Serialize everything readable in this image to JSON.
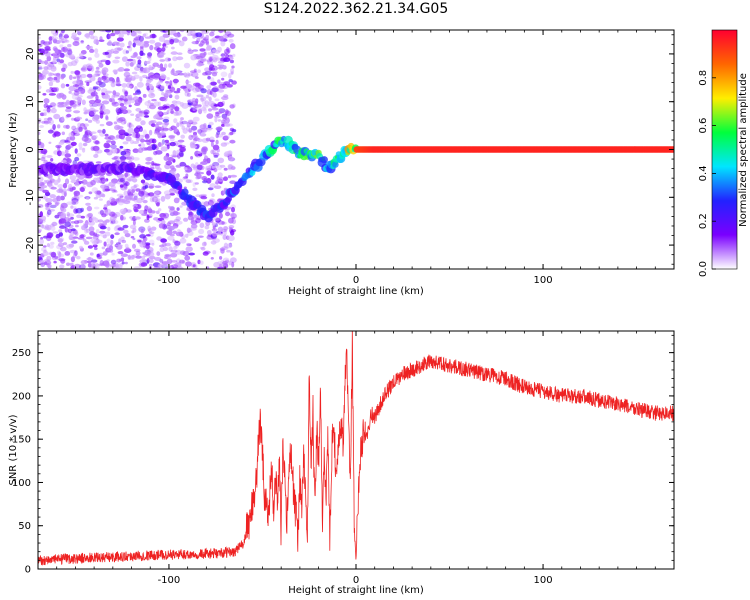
{
  "title": "S124.2022.362.21.34.G05",
  "chart_data": [
    {
      "type": "heatmap",
      "xlabel": "Height of straight line (km)",
      "ylabel": "Frequency (Hz)",
      "xlim": [
        -170,
        170
      ],
      "ylim": [
        -25,
        25
      ],
      "xticks": [
        -100,
        0,
        100
      ],
      "yticks": [
        -20,
        -10,
        0,
        10,
        20
      ],
      "colorbar": {
        "label": "Normalized spectral amplitude",
        "range": [
          0,
          1
        ],
        "ticks": [
          "0.0",
          "0.2",
          "0.4",
          "0.6",
          "0.8"
        ],
        "colors": [
          "#ffffff",
          "#7a00ff",
          "#2222ff",
          "#00e6ff",
          "#00ff3c",
          "#ffee00",
          "#ff6600",
          "#ff0030"
        ]
      },
      "ridge": {
        "x": [
          -170,
          -120,
          -100,
          -80,
          -70,
          -60,
          -50,
          -40,
          -35,
          -30,
          -25,
          -20,
          -15,
          -10,
          -5,
          0,
          10,
          50,
          100,
          170
        ],
        "freq": [
          -4,
          -4,
          -6,
          -14,
          -11,
          -6,
          -2,
          2,
          1,
          -1,
          -1,
          -1,
          -4,
          -2,
          0,
          0,
          0,
          0,
          0,
          0
        ],
        "amplitude": [
          0.15,
          0.2,
          0.25,
          0.3,
          0.3,
          0.35,
          0.45,
          0.55,
          0.55,
          0.6,
          0.6,
          0.65,
          0.4,
          0.6,
          0.7,
          0.9,
          0.95,
          0.95,
          0.95,
          0.95
        ]
      }
    },
    {
      "type": "line",
      "xlabel": "Height of straight line (km)",
      "ylabel": "SNR (10 * v/v)",
      "xlim": [
        -170,
        170
      ],
      "ylim": [
        0,
        275
      ],
      "xticks": [
        -100,
        0,
        100
      ],
      "yticks": [
        0,
        50,
        100,
        150,
        200,
        250
      ],
      "color": "#ee2222",
      "series": [
        {
          "x": [
            -170,
            -150,
            -130,
            -110,
            -90,
            -75,
            -65,
            -60,
            -57,
            -55,
            -53,
            -52,
            -51,
            -49,
            -47,
            -45,
            -44,
            -43,
            -42,
            -41,
            -40,
            -39,
            -38,
            -37,
            -35,
            -33,
            -31,
            -30,
            -29,
            -28,
            -27,
            -26,
            -25,
            -24,
            -23,
            -22,
            -21,
            -20,
            -19,
            -18,
            -17,
            -16,
            -15,
            -14,
            -13,
            -12,
            -11,
            -10,
            -9,
            -8,
            -7,
            -6,
            -5,
            -4,
            -3,
            -2,
            -1,
            0,
            2,
            4,
            6,
            8,
            10,
            15,
            20,
            25,
            30,
            40,
            50,
            60,
            70,
            80,
            90,
            100,
            110,
            120,
            130,
            140,
            150,
            160,
            170
          ],
          "y": [
            10,
            12,
            14,
            16,
            17,
            18,
            20,
            30,
            55,
            80,
            110,
            150,
            170,
            90,
            60,
            120,
            50,
            110,
            70,
            130,
            40,
            150,
            100,
            60,
            140,
            80,
            40,
            110,
            60,
            130,
            95,
            30,
            220,
            120,
            180,
            60,
            160,
            120,
            210,
            45,
            140,
            80,
            160,
            25,
            130,
            180,
            120,
            110,
            150,
            170,
            140,
            210,
            245,
            180,
            90,
            270,
            60,
            10,
            130,
            160,
            155,
            180,
            175,
            200,
            215,
            225,
            230,
            240,
            235,
            230,
            225,
            220,
            210,
            205,
            200,
            200,
            195,
            190,
            185,
            180,
            180
          ]
        }
      ]
    }
  ]
}
